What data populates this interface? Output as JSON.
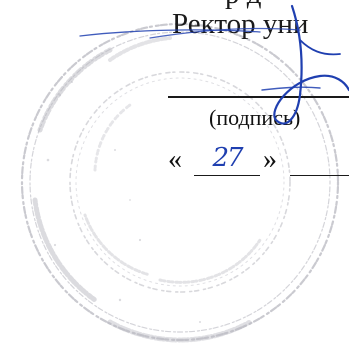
{
  "header": {
    "title_fragment": "Ректор уни",
    "top_fragment": "р д"
  },
  "signature_block": {
    "caption": "(подпись)"
  },
  "date_block": {
    "quote_open": "«",
    "day": "27",
    "quote_close": "»"
  },
  "colors": {
    "ink": "#1a1a1a",
    "pen": "#1f3fb0",
    "stamp": "#b8b8c0"
  },
  "stamp": {
    "shape": "round-seal"
  }
}
